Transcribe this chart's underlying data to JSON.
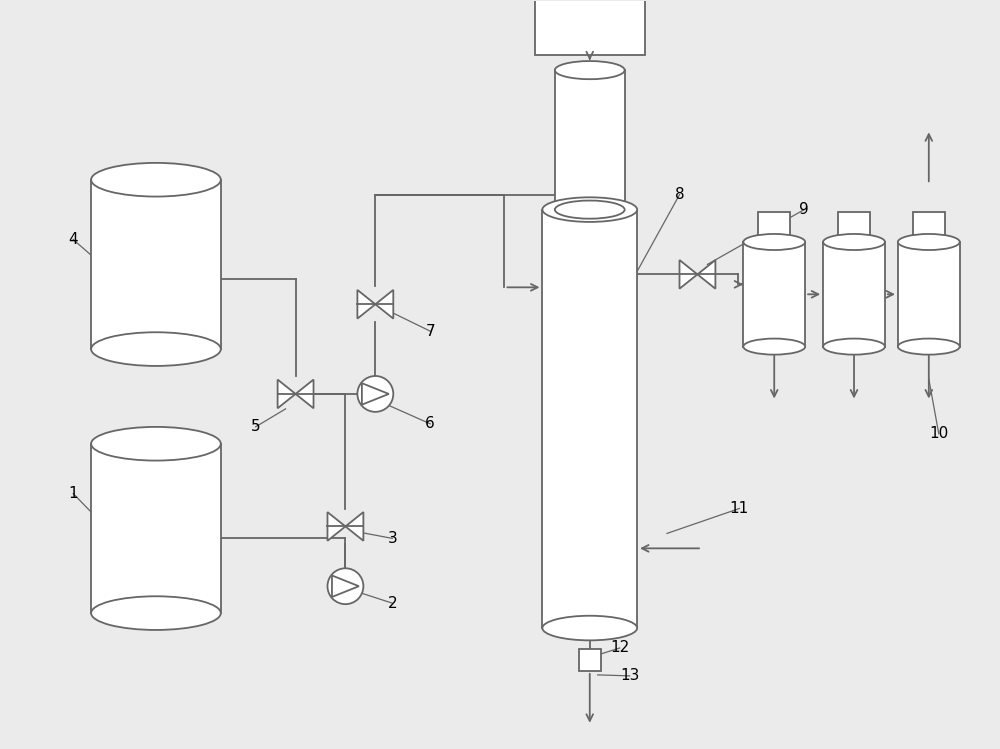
{
  "bg_color": "#ebebeb",
  "line_color": "#666666",
  "lw": 1.3
}
